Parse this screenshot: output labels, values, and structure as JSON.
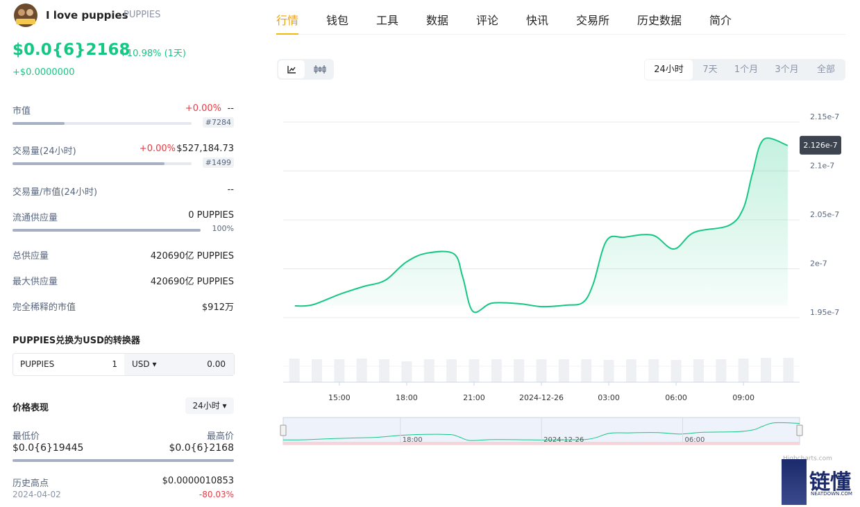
{
  "header": {
    "name": "I love puppies",
    "symbol": "PUPPIES",
    "price": "$0.0{6}2168",
    "change": "+10.98% (1天)",
    "change_abs": "+$0.0000000"
  },
  "stats": [
    {
      "label": "市值",
      "change": "+0.00%",
      "value": "--",
      "rank": "#7284",
      "bar": 29
    },
    {
      "label": "交易量(24小时)",
      "change": "+0.00%",
      "value": "$527,184.73",
      "rank": "#1499",
      "bar": 85
    },
    {
      "label": "交易量/市值(24小时)",
      "value": "--"
    },
    {
      "label": "流通供应量",
      "value": "0 PUPPIES",
      "bar": 100,
      "bar_label": "100%"
    },
    {
      "label": "总供应量",
      "value": "420690亿 PUPPIES"
    },
    {
      "label": "最大供应量",
      "value": "420690亿 PUPPIES"
    },
    {
      "label": "完全稀释的市值",
      "value": "$912万"
    }
  ],
  "converter": {
    "title": "PUPPIES兑换为USD的转换器",
    "from": "PUPPIES",
    "amount": 1,
    "to": "USD ▾",
    "result": "0.00"
  },
  "performance": {
    "title": "价格表现",
    "period": "24小时 ▾",
    "low_label": "最低价",
    "low": "$0.0{6}19445",
    "high_label": "最高价",
    "high": "$0.0{6}2168",
    "ath_label": "历史高点",
    "ath": "$0.0000010853",
    "ath_date": "2024-04-02",
    "ath_change": "-80.03%"
  },
  "tabs": [
    "行情",
    "钱包",
    "工具",
    "数据",
    "评论",
    "快讯",
    "交易所",
    "历史数据",
    "简介"
  ],
  "ranges": [
    "24小时",
    "7天",
    "1个月",
    "3个月",
    "全部"
  ],
  "chart_data": {
    "type": "line",
    "series": [
      {
        "name": "PUPPIES",
        "color": "#16c784",
        "x": [
          13.02,
          13.8,
          15.03,
          16.1,
          17.05,
          17.97,
          18.9,
          20.1,
          20.5,
          20.95,
          21.8,
          23.05,
          24,
          25.1,
          25.85,
          26.3,
          26.9,
          27.7,
          28.95,
          29.9,
          30.8,
          32.35,
          33,
          33.4,
          33.9,
          34.97
        ],
        "values": [
          1.962e-07,
          1.9631e-07,
          1.9741e-07,
          1.982e-07,
          1.9883e-07,
          2.0067e-07,
          2.016e-07,
          2.0153e-07,
          1.9911e-07,
          1.9564e-07,
          1.9649e-07,
          1.9642e-07,
          1.9613e-07,
          1.9628e-07,
          1.9656e-07,
          1.984e-07,
          2.0287e-07,
          2.0323e-07,
          2.0344e-07,
          2.0202e-07,
          2.0372e-07,
          2.0443e-07,
          2.0621e-07,
          2.0975e-07,
          2.1323e-07,
          2.126e-07
        ]
      }
    ],
    "xlim": [
      12.5,
      35.5
    ],
    "xticks": [
      {
        "value": 15,
        "label": "15:00"
      },
      {
        "value": 18,
        "label": "18:00"
      },
      {
        "value": 21,
        "label": "21:00"
      },
      {
        "value": 24,
        "label": "2024-12-26"
      },
      {
        "value": 27,
        "label": "03:00"
      },
      {
        "value": 30,
        "label": "06:00"
      },
      {
        "value": 33,
        "label": "09:00"
      }
    ],
    "ylim": [
      1.95e-07,
      2.15e-07
    ],
    "yticks": [
      1.95e-07,
      2e-07,
      2.05e-07,
      2.1e-07,
      2.15e-07
    ],
    "grid": true,
    "volume": {
      "color": "#eef0f3",
      "ylim": [
        0,
        40
      ],
      "x": [
        13,
        14,
        15,
        16,
        17,
        18,
        19,
        20,
        21,
        22,
        23,
        24,
        25,
        26,
        27,
        28,
        29,
        30,
        31,
        32,
        33,
        34,
        35
      ],
      "values": [
        34,
        33,
        33,
        34,
        33,
        30,
        33,
        33,
        33,
        33,
        33,
        33,
        33,
        33,
        32,
        33,
        33,
        32,
        33,
        33,
        34,
        35,
        35
      ]
    },
    "navigator_xticks": [
      {
        "value": 18,
        "label": "18:00"
      },
      {
        "value": 24,
        "label": "2024-12-26"
      },
      {
        "value": 30,
        "label": "06:00"
      }
    ],
    "credit": "Highcharts.com"
  },
  "watermark": {
    "text": "链懂",
    "sub": "NEATDOWN.COM"
  }
}
